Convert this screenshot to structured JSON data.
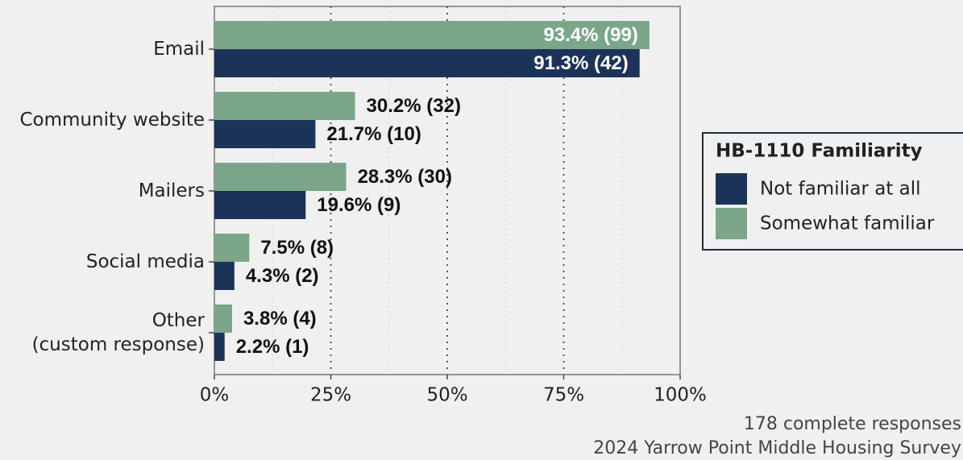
{
  "chart_data": {
    "type": "bar",
    "orientation": "horizontal",
    "categories": [
      "Email",
      "Community website",
      "Mailers",
      "Social media",
      "Other\n(custom response)"
    ],
    "series": [
      {
        "name": "Not familiar at all",
        "color": "#1c3359",
        "values": [
          91.3,
          21.7,
          19.6,
          4.3,
          2.2
        ],
        "value_labels": [
          "91.3% (42)",
          "21.7% (10)",
          "19.6% (9)",
          "4.3% (2)",
          "2.2% (1)"
        ]
      },
      {
        "name": "Somewhat familiar",
        "color": "#7ba68a",
        "values": [
          93.4,
          30.2,
          28.3,
          7.5,
          3.8
        ],
        "value_labels": [
          "93.4% (99)",
          "30.2% (32)",
          "28.3% (30)",
          "7.5% (8)",
          "3.8% (4)"
        ]
      }
    ],
    "legend_title": "HB-1110 Familiarity",
    "legend": "right",
    "xlim": [
      0,
      100
    ],
    "xticks": [
      {
        "value": 0,
        "label": "0%"
      },
      {
        "value": 25,
        "label": "25%"
      },
      {
        "value": 50,
        "label": "50%"
      },
      {
        "value": 75,
        "label": "75%"
      },
      {
        "value": 100,
        "label": "100%"
      }
    ],
    "grid": true,
    "caption": [
      "178 complete responses",
      "2024 Yarrow Point Middle Housing Survey"
    ]
  }
}
